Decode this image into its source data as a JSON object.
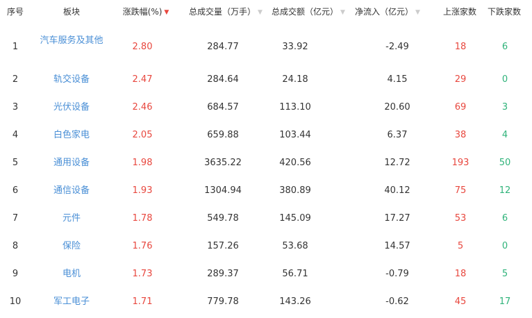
{
  "header": {
    "cols": [
      "序号",
      "板块",
      "涨跌幅(%)",
      "总成交量（万手）",
      "总成交额（亿元）",
      "净流入（亿元）",
      "上涨家数",
      "下跌家数"
    ],
    "sort_icon": "triangle-down"
  },
  "colors": {
    "up": "#e8473e",
    "down": "#2fb37a",
    "link": "#4a8fd6"
  },
  "rows": [
    {
      "idx": "1",
      "name": "汽车服务及其他",
      "chg": "2.80",
      "vol": "284.77",
      "amt": "33.92",
      "flow": "-2.49",
      "up": "18",
      "down": "6"
    },
    {
      "idx": "2",
      "name": "轨交设备",
      "chg": "2.47",
      "vol": "284.64",
      "amt": "24.18",
      "flow": "4.15",
      "up": "29",
      "down": "0"
    },
    {
      "idx": "3",
      "name": "光伏设备",
      "chg": "2.46",
      "vol": "684.57",
      "amt": "113.10",
      "flow": "20.60",
      "up": "69",
      "down": "3"
    },
    {
      "idx": "4",
      "name": "白色家电",
      "chg": "2.05",
      "vol": "659.88",
      "amt": "103.44",
      "flow": "6.37",
      "up": "38",
      "down": "4"
    },
    {
      "idx": "5",
      "name": "通用设备",
      "chg": "1.98",
      "vol": "3635.22",
      "amt": "420.56",
      "flow": "12.72",
      "up": "193",
      "down": "50"
    },
    {
      "idx": "6",
      "name": "通信设备",
      "chg": "1.93",
      "vol": "1304.94",
      "amt": "380.89",
      "flow": "40.12",
      "up": "75",
      "down": "12"
    },
    {
      "idx": "7",
      "name": "元件",
      "chg": "1.78",
      "vol": "549.78",
      "amt": "145.09",
      "flow": "17.27",
      "up": "53",
      "down": "6"
    },
    {
      "idx": "8",
      "name": "保险",
      "chg": "1.76",
      "vol": "157.26",
      "amt": "53.68",
      "flow": "14.57",
      "up": "5",
      "down": "0"
    },
    {
      "idx": "9",
      "name": "电机",
      "chg": "1.73",
      "vol": "289.37",
      "amt": "56.71",
      "flow": "-0.79",
      "up": "18",
      "down": "5"
    },
    {
      "idx": "10",
      "name": "军工电子",
      "chg": "1.71",
      "vol": "779.78",
      "amt": "143.26",
      "flow": "-0.62",
      "up": "45",
      "down": "17"
    }
  ]
}
